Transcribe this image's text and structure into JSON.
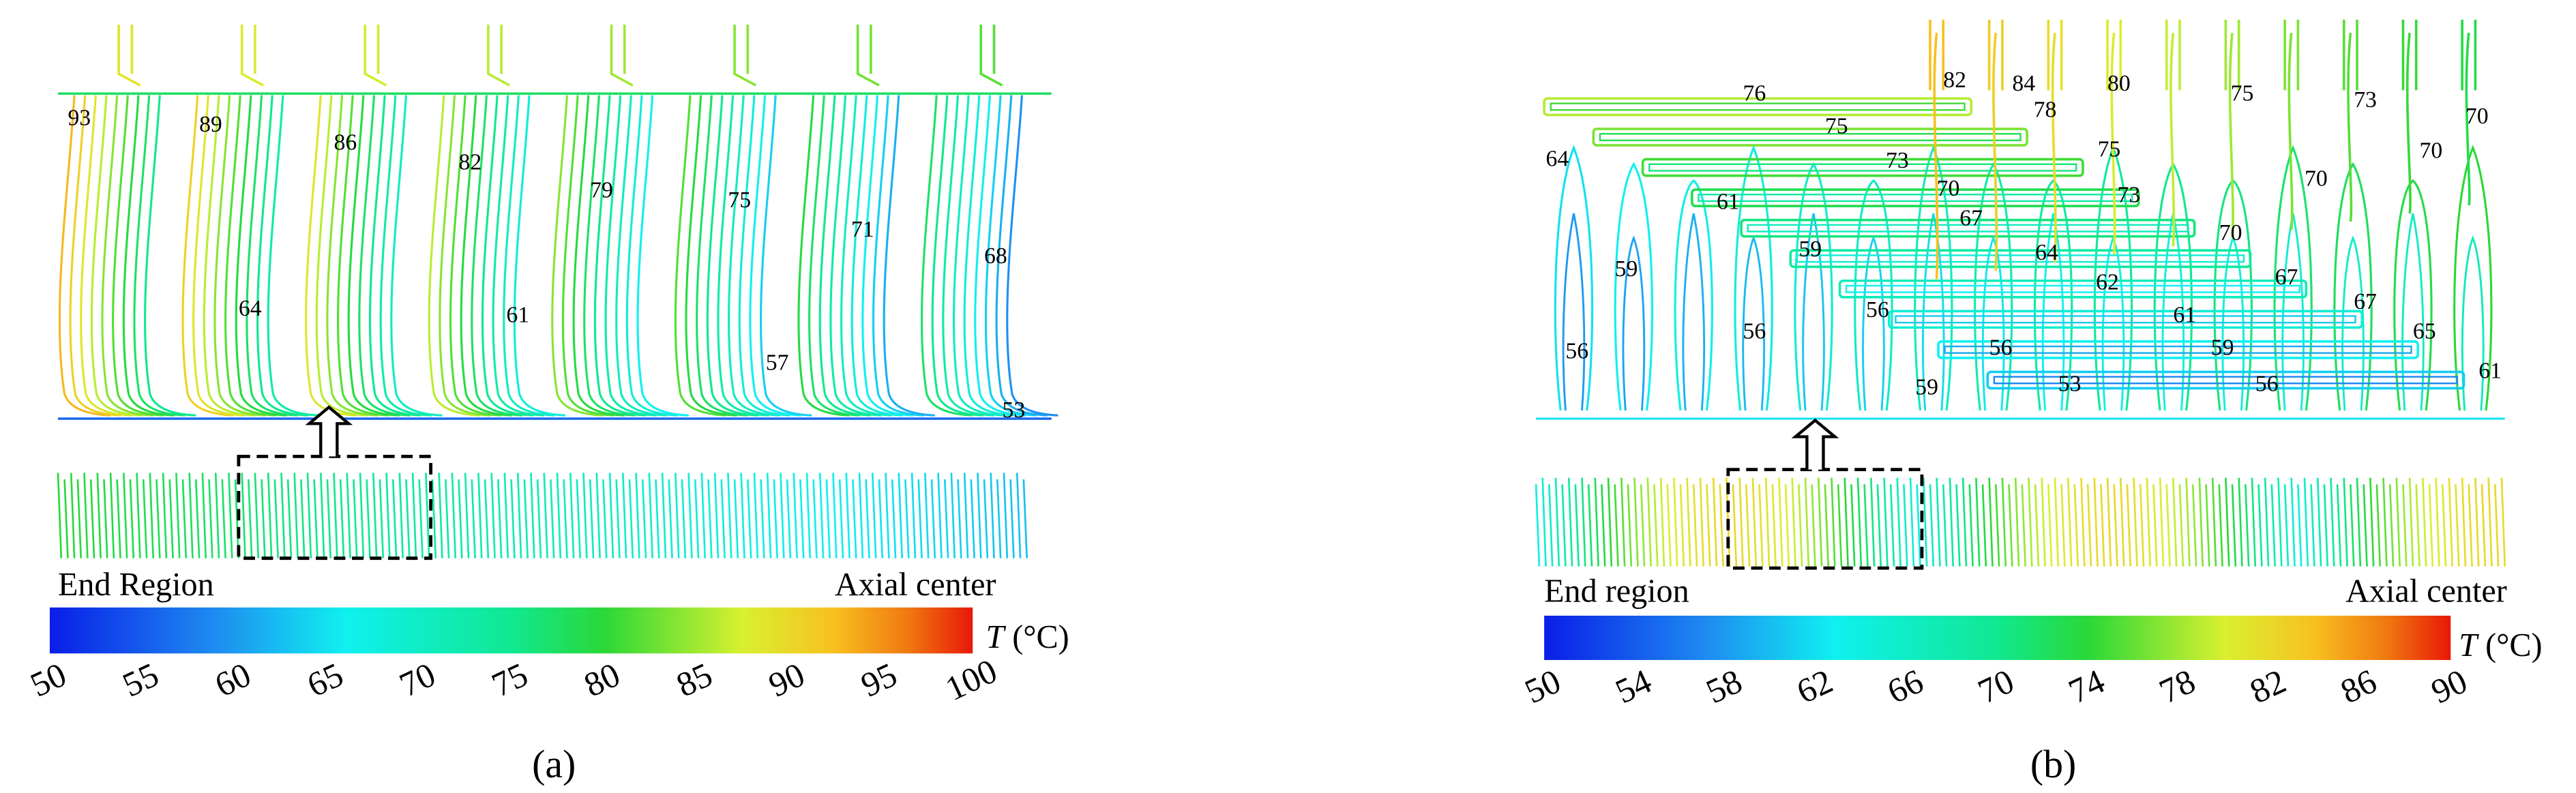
{
  "panels": [
    {
      "caption": "(a)",
      "contour_labels": [
        93,
        89,
        86,
        82,
        79,
        75,
        71,
        68,
        64,
        61,
        57,
        53
      ],
      "left_label": "End Region",
      "right_label": "Axial center",
      "colorbar": {
        "symbol": "T",
        "unit": "(°C)",
        "range": [
          50,
          100
        ],
        "ticks": [
          50,
          55,
          60,
          65,
          70,
          75,
          80,
          85,
          90,
          95,
          100
        ]
      }
    },
    {
      "caption": "(b)",
      "contour_labels": [
        76,
        82,
        84,
        80,
        75,
        73,
        70,
        78,
        75,
        75,
        73,
        70,
        70,
        64,
        61,
        70,
        73,
        67,
        70,
        59,
        64,
        59,
        62,
        67,
        56,
        61,
        67,
        56,
        65,
        59,
        56,
        56,
        61,
        59,
        53,
        56
      ],
      "left_label": "End region",
      "right_label": "Axial center",
      "colorbar": {
        "symbol": "T",
        "unit": "(°C)",
        "range": [
          50,
          90
        ],
        "ticks": [
          50,
          54,
          58,
          62,
          66,
          70,
          74,
          78,
          82,
          86,
          90
        ]
      }
    }
  ]
}
